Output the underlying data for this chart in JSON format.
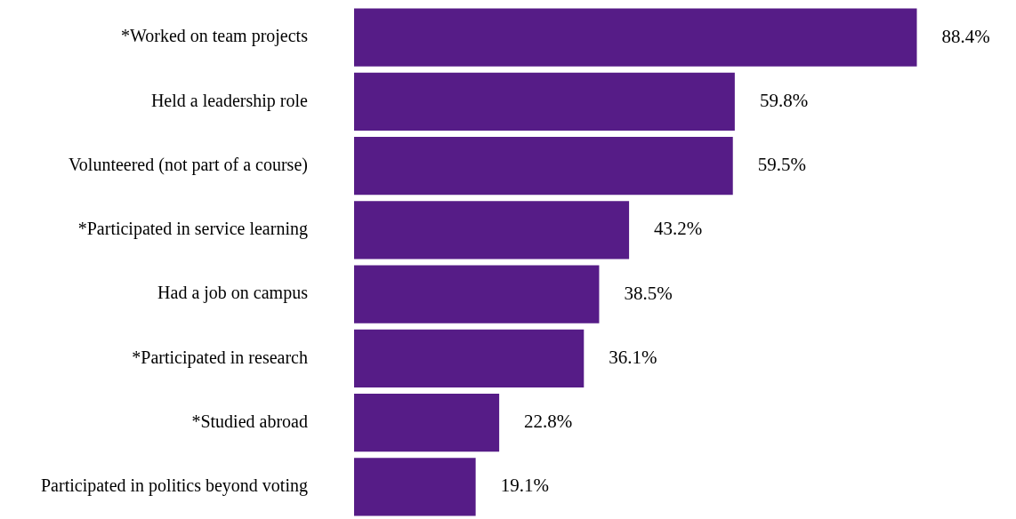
{
  "chart_data": {
    "type": "bar",
    "orientation": "horizontal",
    "categories": [
      "*Worked on team projects",
      "Held a leadership role",
      "Volunteered (not part of a course)",
      "*Participated in service learning",
      "Had a job on campus",
      "*Participated in research",
      "*Studied abroad",
      "Participated in politics beyond voting"
    ],
    "values": [
      88.4,
      59.8,
      59.5,
      43.2,
      38.5,
      36.1,
      22.8,
      19.1
    ],
    "value_labels": [
      "88.4%",
      "59.8%",
      "59.5%",
      "43.2%",
      "38.5%",
      "36.1%",
      "22.8%",
      "19.1%"
    ],
    "color": "#561c87",
    "tick_labels": "y"
  }
}
